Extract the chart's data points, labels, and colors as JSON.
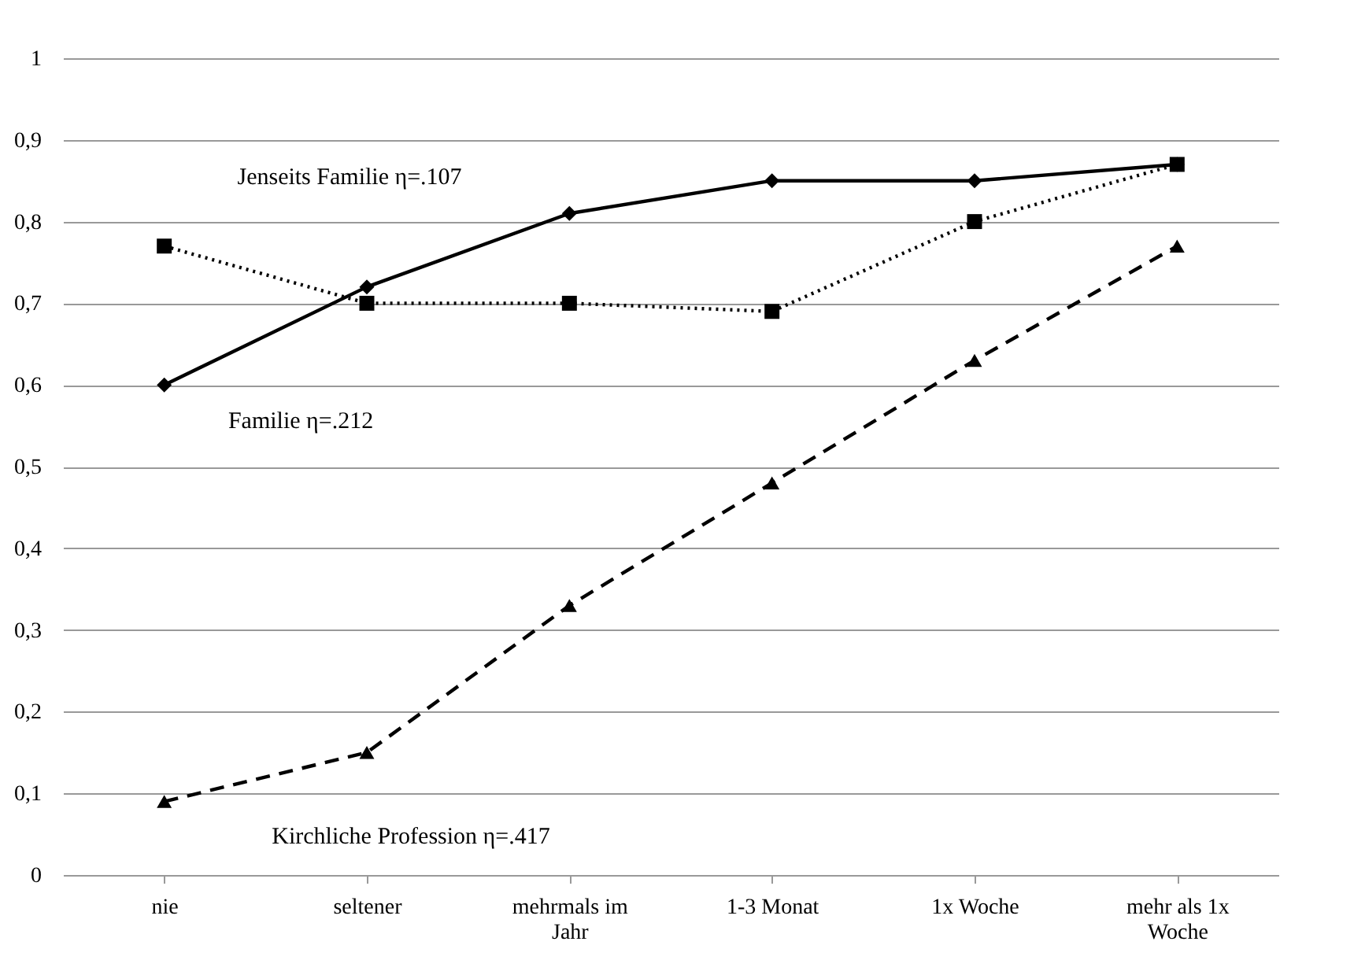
{
  "chart_data": {
    "type": "line",
    "categories": [
      "nie",
      "seltener",
      "mehrmals im Jahr",
      "1-3 Monat",
      "1x Woche",
      "mehr als 1x Woche"
    ],
    "series": [
      {
        "color": "#000000",
        "marker": "diamond",
        "line_style": "solid",
        "values": [
          0.6,
          0.72,
          0.81,
          0.85,
          0.85,
          0.87
        ]
      },
      {
        "color": "#000000",
        "marker": "square",
        "line_style": "dotted",
        "values": [
          0.77,
          0.7,
          0.7,
          0.69,
          0.8,
          0.87
        ]
      },
      {
        "color": "#000000",
        "marker": "triangle",
        "line_style": "dashed",
        "values": [
          0.09,
          0.15,
          0.33,
          0.48,
          0.63,
          0.77
        ]
      }
    ],
    "annotations": [
      "Jenseits Familie η=.107",
      "Familie η=.212",
      "Kirchliche Profession η=.417"
    ],
    "ylim": [
      0,
      1
    ],
    "yticks": [
      {
        "value": 0,
        "label": "0"
      },
      {
        "value": 0.1,
        "label": "0,1"
      },
      {
        "value": 0.2,
        "label": "0,2"
      },
      {
        "value": 0.3,
        "label": "0,3"
      },
      {
        "value": 0.4,
        "label": "0,4"
      },
      {
        "value": 0.5,
        "label": "0,5"
      },
      {
        "value": 0.6,
        "label": "0,6"
      },
      {
        "value": 0.7,
        "label": "0,7"
      },
      {
        "value": 0.8,
        "label": "0,8"
      },
      {
        "value": 0.9,
        "label": "0,9"
      },
      {
        "value": 1,
        "label": "1"
      }
    ],
    "grid": "y"
  }
}
